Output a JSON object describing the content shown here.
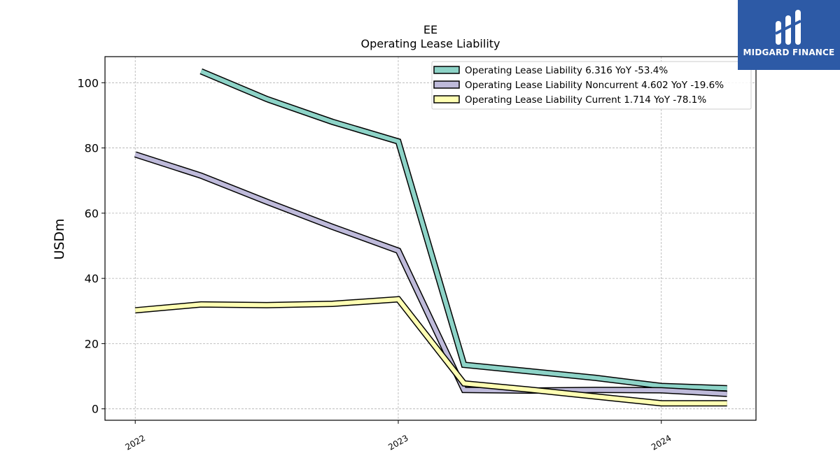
{
  "brand": {
    "name": "MIDGARD FINANCE",
    "bg_color": "#2d5aa6"
  },
  "chart_data": {
    "type": "line",
    "title": "EE",
    "subtitle": "Operating Lease Liability",
    "xlabel": "",
    "ylabel": "USDm",
    "x_ticks": [
      "2022",
      "2023",
      "2024"
    ],
    "y_ticks": [
      0,
      20,
      40,
      60,
      80,
      100
    ],
    "ylim": [
      -3.5,
      108
    ],
    "xlim": [
      2021.885,
      2024.36
    ],
    "grid": true,
    "legend_position": "top-right",
    "series": [
      {
        "name": "Operating Lease Liability  6.316 YoY -53.4%",
        "color": "#8dd3c7",
        "points": [
          [
            2022.25,
            103.5
          ],
          [
            2022.5,
            95.0
          ],
          [
            2022.75,
            88.0
          ],
          [
            2023.0,
            82.0
          ],
          [
            2023.25,
            13.5
          ],
          [
            2023.5,
            11.5
          ],
          [
            2023.75,
            9.5
          ],
          [
            2024.0,
            7.0
          ],
          [
            2024.25,
            6.3
          ]
        ]
      },
      {
        "name": "Operating Lease Liability Noncurrent  4.602 YoY -19.6%",
        "color": "#bebada",
        "points": [
          [
            2022.0,
            78.0
          ],
          [
            2022.25,
            71.5
          ],
          [
            2022.5,
            63.5
          ],
          [
            2022.75,
            55.8
          ],
          [
            2023.0,
            48.5
          ],
          [
            2023.25,
            5.8
          ],
          [
            2023.5,
            5.6
          ],
          [
            2023.75,
            5.8
          ],
          [
            2024.0,
            5.7
          ],
          [
            2024.25,
            4.6
          ]
        ]
      },
      {
        "name": "Operating Lease Liability Current  1.714 YoY -78.1%",
        "color": "#ffffb3",
        "points": [
          [
            2022.0,
            30.2
          ],
          [
            2022.25,
            32.0
          ],
          [
            2022.5,
            31.8
          ],
          [
            2022.75,
            32.2
          ],
          [
            2023.0,
            33.6
          ],
          [
            2023.25,
            7.8
          ],
          [
            2023.5,
            5.9
          ],
          [
            2023.75,
            3.8
          ],
          [
            2024.0,
            1.7
          ],
          [
            2024.25,
            1.7
          ]
        ]
      }
    ]
  }
}
